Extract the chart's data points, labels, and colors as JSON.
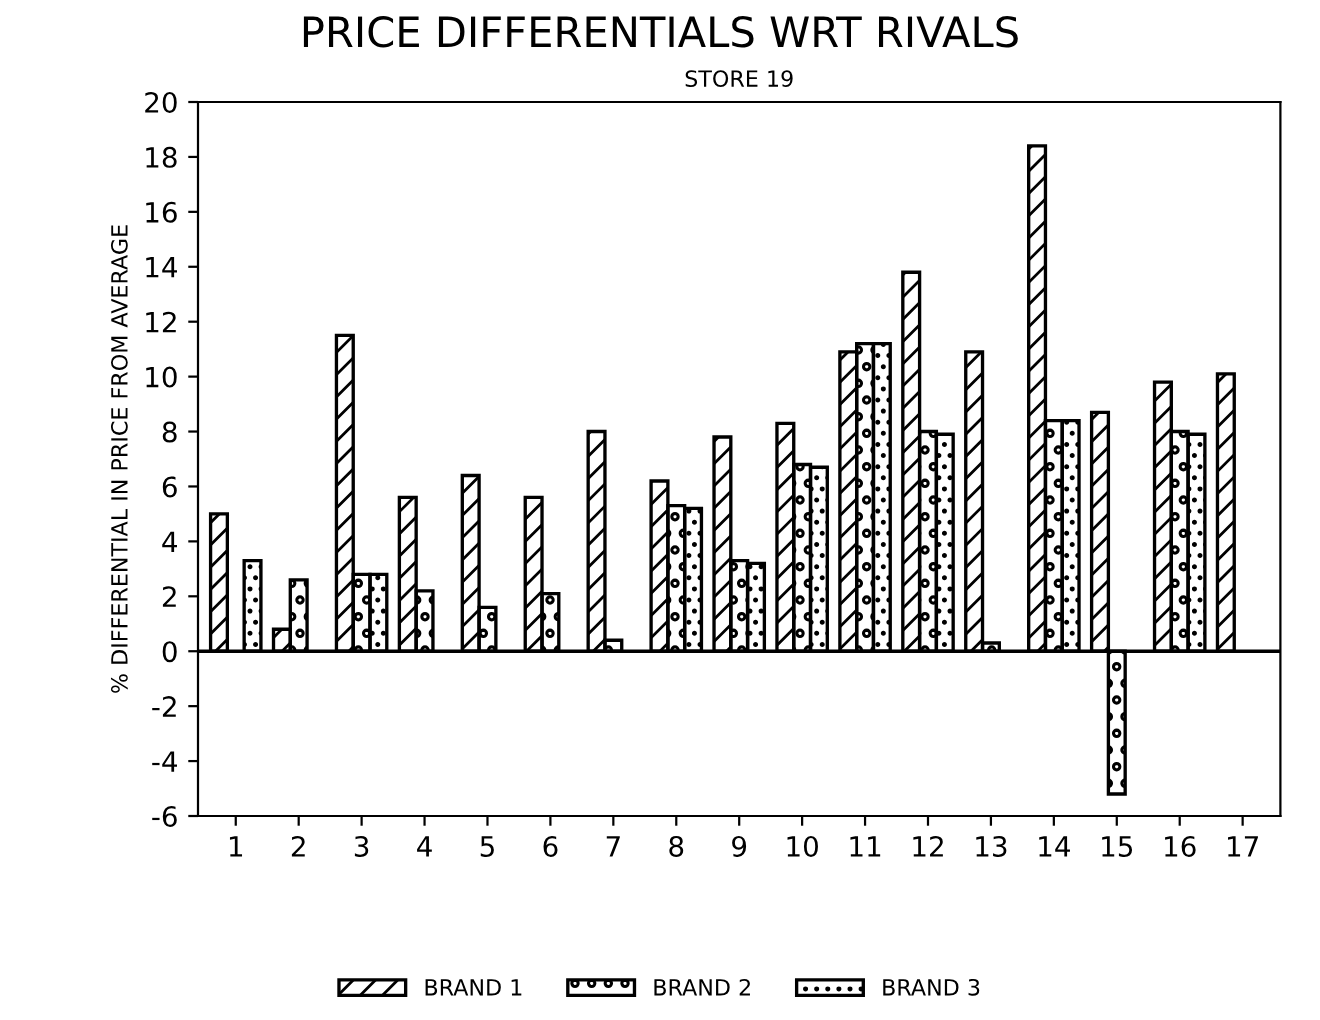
{
  "chart_data": {
    "type": "bar",
    "title": "PRICE DIFFERENTIALS WRT RIVALS",
    "subtitle": "STORE 19",
    "ylabel": "% DIFFERENTIAL IN PRICE FROM AVERAGE",
    "categories": [
      "1",
      "2",
      "3",
      "4",
      "5",
      "6",
      "7",
      "8",
      "9",
      "10",
      "11",
      "12",
      "13",
      "14",
      "15",
      "16",
      "17"
    ],
    "series": [
      {
        "name": "BRAND 1",
        "color": "#000000",
        "values": [
          5.0,
          0.8,
          11.5,
          5.6,
          6.4,
          5.6,
          8.0,
          6.2,
          7.8,
          8.3,
          10.9,
          13.8,
          10.9,
          18.4,
          8.7,
          9.8,
          10.1
        ]
      },
      {
        "name": "BRAND 2",
        "color": "#000000",
        "values": [
          null,
          2.6,
          2.8,
          2.2,
          1.6,
          2.1,
          0.4,
          5.3,
          3.3,
          6.8,
          11.2,
          8.0,
          0.3,
          8.4,
          -5.2,
          8.0,
          null
        ]
      },
      {
        "name": "BRAND 3",
        "color": "#000000",
        "values": [
          3.3,
          null,
          2.8,
          null,
          null,
          null,
          null,
          5.2,
          3.2,
          6.7,
          11.2,
          7.9,
          null,
          8.4,
          null,
          7.9,
          null
        ]
      }
    ],
    "ylim": [
      -6,
      20
    ],
    "yticks": [
      -6,
      -4,
      -2,
      0,
      2,
      4,
      6,
      8,
      10,
      12,
      14,
      16,
      18,
      20
    ],
    "ref_lines": [
      {
        "axis": "y",
        "value": 0
      }
    ],
    "grid": false,
    "legend": "bottom"
  }
}
